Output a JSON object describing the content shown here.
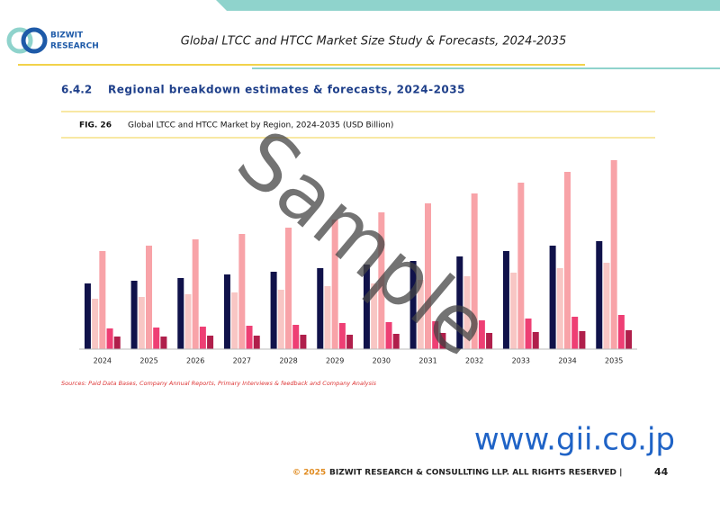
{
  "logo": {
    "line1": "BIZWIT",
    "line2": "RESEARCH"
  },
  "header": {
    "title": "Global LTCC and HTCC Market Size Study & Forecasts, 2024-2035"
  },
  "section": {
    "number": "6.4.2",
    "title": "Regional breakdown estimates & forecasts, 2024-2035"
  },
  "figure": {
    "label": "FIG. 26"
  },
  "chart_data": {
    "type": "bar",
    "title": "Global LTCC and HTCC Market by Region, 2024-2035 (USD Billion)",
    "categories": [
      "2024",
      "2025",
      "2026",
      "2027",
      "2028",
      "2029",
      "2030",
      "2031",
      "2032",
      "2033",
      "2034",
      "2035"
    ],
    "ylim": [
      0,
      210
    ],
    "series": [
      {
        "color": "#10124a",
        "values": [
          73,
          76,
          79,
          83,
          86,
          90,
          94,
          98,
          103,
          109,
          115,
          120
        ]
      },
      {
        "color": "#f8c6c4",
        "values": [
          56,
          58,
          61,
          63,
          66,
          70,
          73,
          77,
          81,
          85,
          90,
          96
        ]
      },
      {
        "color": "#f8a3a8",
        "values": [
          109,
          115,
          122,
          128,
          135,
          144,
          152,
          162,
          173,
          185,
          197,
          210
        ]
      },
      {
        "color": "#ee3f74",
        "values": [
          23,
          24,
          25,
          26,
          27,
          29,
          30,
          31,
          32,
          34,
          36,
          38
        ]
      },
      {
        "color": "#b01f4b",
        "values": [
          14,
          14,
          15,
          15,
          16,
          16,
          17,
          18,
          18,
          19,
          20,
          21
        ]
      }
    ]
  },
  "sources": "Sources: Paid Data Bases, Company Annual Reports, Primary Interviews & feedback and Company Analysis",
  "watermark": "Sample",
  "website": "www.gii.co.jp",
  "footer": {
    "year": "© 2025",
    "text": "BIZWIT RESEARCH & CONSULLTING LLP. ALL RIGHTS RESERVED |",
    "page": "44"
  }
}
